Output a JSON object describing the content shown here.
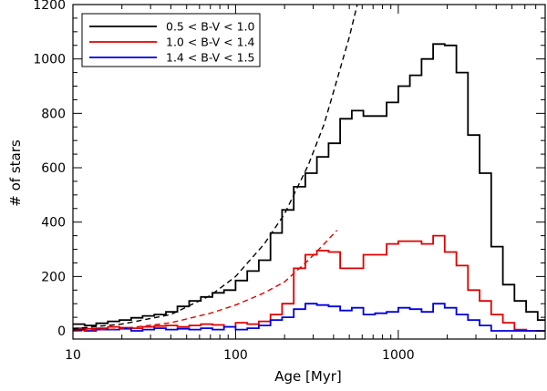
{
  "chart_data": {
    "type": "line",
    "title": "",
    "xlabel": "Age [Myr]",
    "ylabel": "# of stars",
    "xscale": "log",
    "xlim": [
      10,
      8000
    ],
    "ylim": [
      -30,
      1200
    ],
    "x_ticks": [
      {
        "value": 10,
        "label": "10"
      },
      {
        "value": 100,
        "label": "100"
      },
      {
        "value": 1000,
        "label": "1000"
      }
    ],
    "y_ticks": [
      {
        "value": 0,
        "label": "0"
      },
      {
        "value": 200,
        "label": "200"
      },
      {
        "value": 400,
        "label": "400"
      },
      {
        "value": 600,
        "label": "600"
      },
      {
        "value": 800,
        "label": "800"
      },
      {
        "value": 1000,
        "label": "1000"
      },
      {
        "value": 1200,
        "label": "1200"
      }
    ],
    "legend_position": "top-left",
    "grid": false,
    "bin_edges": [
      10,
      11.8,
      13.9,
      16.4,
      19.3,
      22.8,
      26.8,
      31.6,
      37.3,
      43.9,
      51.8,
      61.1,
      72,
      84.8,
      100,
      117.9,
      138.9,
      163.8,
      193.1,
      227.6,
      268.3,
      316.2,
      372.8,
      439.4,
      518,
      610.5,
      719.7,
      848.3,
      1000,
      1178.8,
      1389.5,
      1637.9,
      1930.7,
      2275.8,
      2682.7,
      3162.3,
      3727.6,
      4393.9,
      5179.5,
      6105.4,
      7196.9,
      8000
    ],
    "series": [
      {
        "name": "0.5 < B-V < 1.0",
        "color": "#000000",
        "values": [
          25,
          20,
          28,
          35,
          40,
          48,
          55,
          60,
          70,
          90,
          110,
          125,
          140,
          150,
          185,
          220,
          260,
          360,
          445,
          530,
          580,
          640,
          690,
          780,
          810,
          790,
          790,
          840,
          900,
          940,
          1000,
          1055,
          1050,
          950,
          720,
          580,
          310,
          170,
          110,
          70,
          40
        ]
      },
      {
        "name": "1.0 < B-V < 1.4",
        "color": "#e00000",
        "values": [
          10,
          8,
          10,
          15,
          12,
          10,
          15,
          18,
          20,
          15,
          20,
          25,
          22,
          15,
          30,
          25,
          35,
          60,
          100,
          230,
          280,
          295,
          290,
          230,
          230,
          280,
          280,
          320,
          330,
          330,
          320,
          350,
          290,
          240,
          150,
          110,
          60,
          30,
          5,
          0,
          0
        ]
      },
      {
        "name": "1.4 < B-V < 1.5",
        "color": "#0000e0",
        "values": [
          5,
          0,
          5,
          5,
          8,
          0,
          5,
          10,
          5,
          8,
          5,
          10,
          5,
          15,
          5,
          10,
          20,
          40,
          50,
          80,
          100,
          95,
          90,
          75,
          85,
          60,
          65,
          70,
          85,
          80,
          70,
          100,
          85,
          60,
          40,
          20,
          0,
          0,
          0,
          0,
          0
        ]
      }
    ],
    "fits": [
      {
        "color": "#000000",
        "style": "dashed",
        "points": [
          [
            10,
            8
          ],
          [
            20,
            25
          ],
          [
            40,
            60
          ],
          [
            70,
            130
          ],
          [
            100,
            200
          ],
          [
            150,
            320
          ],
          [
            200,
            430
          ],
          [
            280,
            610
          ],
          [
            350,
            760
          ],
          [
            400,
            880
          ],
          [
            500,
            1080
          ],
          [
            560,
            1200
          ]
        ]
      },
      {
        "color": "#e00000",
        "style": "dashed",
        "points": [
          [
            10,
            0
          ],
          [
            20,
            8
          ],
          [
            40,
            30
          ],
          [
            70,
            65
          ],
          [
            100,
            95
          ],
          [
            150,
            140
          ],
          [
            200,
            180
          ],
          [
            280,
            260
          ],
          [
            350,
            320
          ],
          [
            420,
            370
          ]
        ]
      }
    ]
  }
}
